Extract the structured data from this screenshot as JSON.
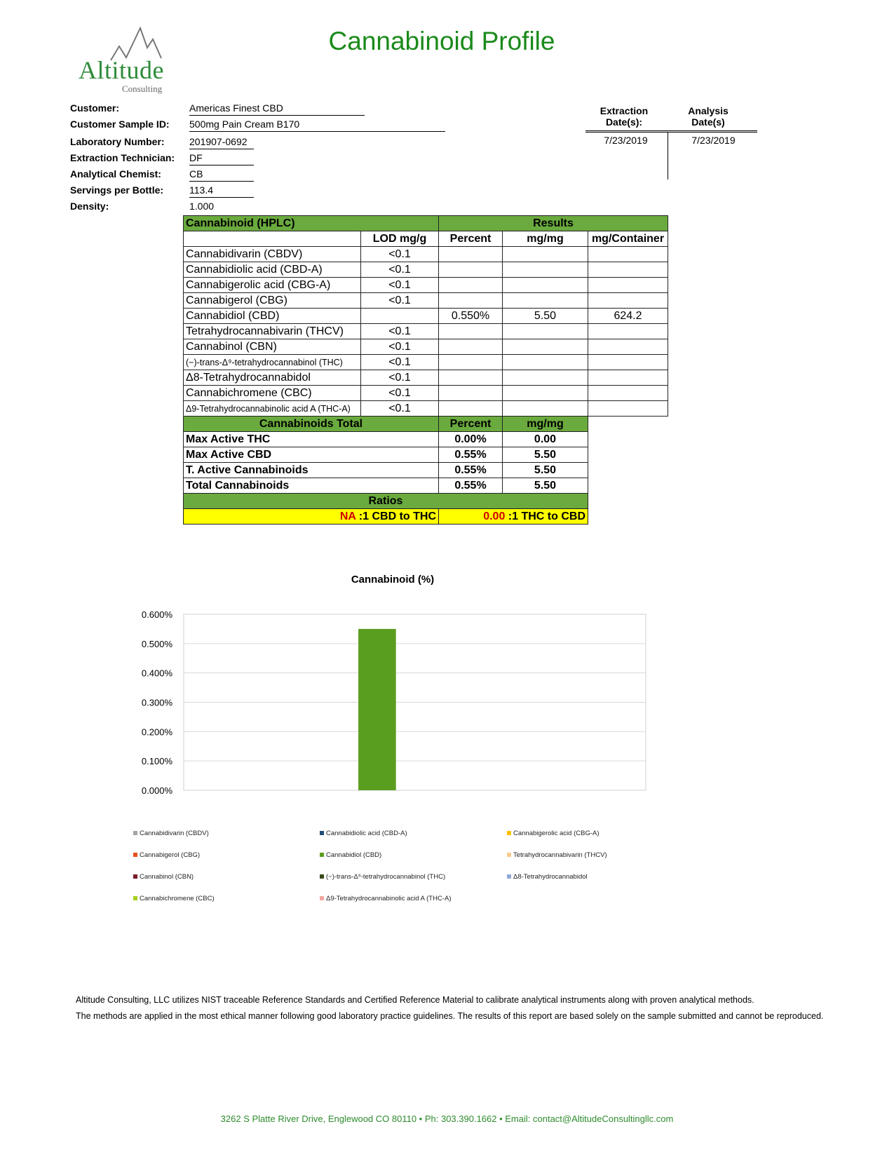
{
  "header": {
    "title": "Cannabinoid Profile",
    "logo_text": "Altitude",
    "logo_sub": "Consulting"
  },
  "info": [
    {
      "label": "Customer:",
      "value": "Americas Finest CBD"
    },
    {
      "label": "Customer Sample ID:",
      "value": "500mg Pain Cream B170"
    },
    {
      "label": "Laboratory Number:",
      "value": "201907-0692"
    },
    {
      "label": "Extraction Technician:",
      "value": "DF"
    },
    {
      "label": "Analytical Chemist:",
      "value": "CB"
    },
    {
      "label": "Servings per Bottle:",
      "value": "113.4"
    },
    {
      "label": "Density:",
      "value": "1.000"
    }
  ],
  "dates": {
    "extraction_label1": "Extraction",
    "extraction_label2": "Date(s):",
    "analysis_label1": "Analysis",
    "analysis_label2": "Date(s)",
    "extraction": "7/23/2019",
    "analysis": "7/23/2019"
  },
  "results": {
    "h_cannabinoid": "Cannabinoid (HPLC)",
    "h_results": "Results",
    "cols": [
      "LOD mg/g",
      "Percent",
      "mg/mg",
      "mg/Container"
    ],
    "rows": [
      {
        "name": "Cannabidivarin (CBDV)",
        "lod": "<0.1",
        "pct": "",
        "mgmg": "",
        "mgc": ""
      },
      {
        "name": "Cannabidiolic acid (CBD-A)",
        "lod": "<0.1",
        "pct": "",
        "mgmg": "",
        "mgc": ""
      },
      {
        "name": "Cannabigerolic acid (CBG-A)",
        "lod": "<0.1",
        "pct": "",
        "mgmg": "",
        "mgc": ""
      },
      {
        "name": "Cannabigerol (CBG)",
        "lod": "<0.1",
        "pct": "",
        "mgmg": "",
        "mgc": ""
      },
      {
        "name": "Cannabidiol (CBD)",
        "lod": "",
        "pct": "0.550%",
        "mgmg": "5.50",
        "mgc": "624.2"
      },
      {
        "name": "Tetrahydrocannabivarin (THCV)",
        "lod": "<0.1",
        "pct": "",
        "mgmg": "",
        "mgc": ""
      },
      {
        "name": "Cannabinol (CBN)",
        "lod": "<0.1",
        "pct": "",
        "mgmg": "",
        "mgc": ""
      },
      {
        "name": "(−)-trans-Δ⁹-tetrahydrocannabinol (THC)",
        "lod": "<0.1",
        "pct": "",
        "mgmg": "",
        "mgc": ""
      },
      {
        "name": "Δ8-Tetrahydrocannabidol",
        "lod": "<0.1",
        "pct": "",
        "mgmg": "",
        "mgc": ""
      },
      {
        "name": "Cannabichromene (CBC)",
        "lod": "<0.1",
        "pct": "",
        "mgmg": "",
        "mgc": ""
      },
      {
        "name": "Δ9-Tetrahydrocannabinolic acid A (THC-A)",
        "lod": "<0.1",
        "pct": "",
        "mgmg": "",
        "mgc": ""
      }
    ],
    "totals_header": [
      "Cannabinoids Total",
      "Percent",
      "mg/mg"
    ],
    "totals": [
      {
        "name": "Max Active THC",
        "pct": "0.00%",
        "mgmg": "0.00"
      },
      {
        "name": "Max Active CBD",
        "pct": "0.55%",
        "mgmg": "5.50"
      },
      {
        "name": "T. Active Cannabinoids",
        "pct": "0.55%",
        "mgmg": "5.50"
      },
      {
        "name": "Total Cannabinoids",
        "pct": "0.55%",
        "mgmg": "5.50"
      }
    ],
    "ratios_label": "Ratios",
    "ratio1_value": "NA",
    "ratio1_text": " :1 CBD to THC",
    "ratio2_value": "0.00",
    "ratio2_text": " :1 THC to CBD"
  },
  "chart_data": {
    "type": "bar",
    "title": "Cannabinoid (%)",
    "xlabel": "",
    "ylabel": "",
    "ylim": [
      0,
      0.6
    ],
    "yticks": [
      "0.000%",
      "0.100%",
      "0.200%",
      "0.300%",
      "0.400%",
      "0.500%",
      "0.600%"
    ],
    "grid": true,
    "legend": "bottom",
    "categories": [
      ""
    ],
    "series": [
      {
        "name": "Cannabidivarin (CBDV)",
        "values": [
          0
        ],
        "color": "#a5a5a5"
      },
      {
        "name": "Cannabidiolic acid (CBD-A)",
        "values": [
          0
        ],
        "color": "#1f4e79"
      },
      {
        "name": "Cannabigerolic acid (CBG-A)",
        "values": [
          0
        ],
        "color": "#ffc000"
      },
      {
        "name": "Cannabigerol (CBG)",
        "values": [
          0
        ],
        "color": "#e8501e"
      },
      {
        "name": "Cannabidiol (CBD)",
        "values": [
          0.55
        ],
        "color": "#5a9e20"
      },
      {
        "name": "Tetrahydrocannabivarin (THCV)",
        "values": [
          0
        ],
        "color": "#f8cb8c"
      },
      {
        "name": "Cannabinol (CBN)",
        "values": [
          0
        ],
        "color": "#7b1a2a"
      },
      {
        "name": "(−)-trans-Δ⁹-tetrahydrocannabinol (THC)",
        "values": [
          0
        ],
        "color": "#3a4a1a"
      },
      {
        "name": "Δ8-Tetrahydrocannabidol",
        "values": [
          0
        ],
        "color": "#8fa9d4"
      },
      {
        "name": "Cannabichromene (CBC)",
        "values": [
          0
        ],
        "color": "#a8d020"
      },
      {
        "name": "Δ9-Tetrahydrocannabinolic acid A (THC-A)",
        "values": [
          0
        ],
        "color": "#f0a8a0"
      }
    ]
  },
  "footer": {
    "line1": "Altitude Consulting, LLC utilizes NIST traceable Reference Standards and Certified Reference Material to calibrate analytical instruments along with proven analytical methods.",
    "line2": "The methods are applied in the most ethical manner following good laboratory practice guidelines. The results of this report are based solely on the sample submitted and cannot be reproduced.",
    "address": "3262 S Platte River Drive, Englewood CO 80110  •  Ph: 303.390.1662  •  Email: contact@AltitudeConsultingllc.com"
  }
}
